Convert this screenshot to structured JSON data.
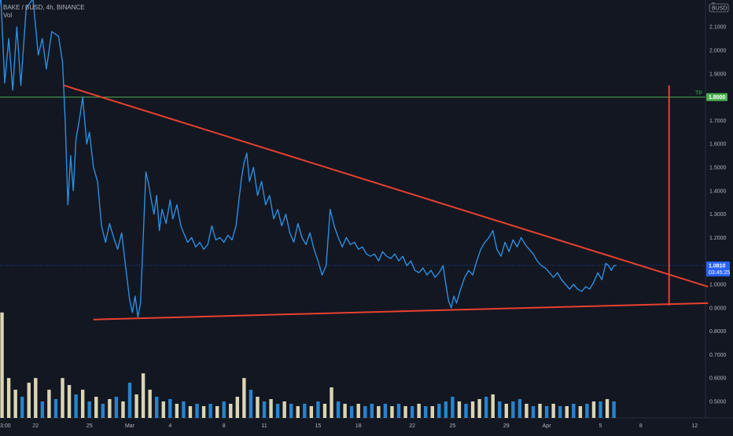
{
  "header": {
    "symbol_line": "BAKE / BUSD, 4h, BINANCE",
    "volume_label": "Vol"
  },
  "colors": {
    "background": "#131722",
    "price_line": "#2a8fe0",
    "trendline": "#e8412f",
    "target_line": "#4caf50",
    "volume_up": "#f2eac2",
    "volume_down": "#2a8fe0",
    "current_price_badge": "#2962ff",
    "target_badge": "#4caf50"
  },
  "chart_data": {
    "type": "line",
    "currency_badge": "BUSD",
    "ylim": [
      0.45,
      2.25
    ],
    "y_ticks": [
      2.1,
      2.0,
      1.9,
      1.7,
      1.6,
      1.5,
      1.4,
      1.3,
      1.2,
      1.0,
      0.9,
      0.8,
      0.7,
      0.6,
      0.5
    ],
    "y_tick_labels": [
      "2.1000",
      "2.0000",
      "1.9000",
      "1.7000",
      "1.6000",
      "1.5000",
      "1.4000",
      "1.3000",
      "1.2000",
      "1.0000",
      "0.9000",
      "0.8000",
      "0.7000",
      "0.6000",
      "0.5000"
    ],
    "top_partial_label": "2",
    "x_tick_labels": [
      "3:00",
      "22",
      "25",
      "Mar",
      "4",
      "8",
      "11",
      "15",
      "18",
      "22",
      "25",
      "29",
      "Apr",
      "5",
      "8",
      "12"
    ],
    "x_tick_days": [
      -9.75,
      -7,
      -3,
      0,
      3,
      7,
      10,
      14,
      17,
      21,
      24,
      28,
      31,
      35,
      38,
      42
    ],
    "current_price": {
      "value": 1.081,
      "label": "1.0810",
      "countdown": "03:45:25"
    },
    "target": {
      "value": 1.8,
      "label": "1.8000",
      "text": "TP"
    },
    "series": [
      {
        "points": [
          [
            -10,
            1.95
          ],
          [
            -9.6,
            2.25
          ],
          [
            -9.3,
            1.86
          ],
          [
            -9.0,
            2.05
          ],
          [
            -8.7,
            1.83
          ],
          [
            -8.4,
            2.1
          ],
          [
            -8.1,
            1.85
          ],
          [
            -7.7,
            2.18
          ],
          [
            -7.2,
            2.22
          ],
          [
            -6.8,
            1.98
          ],
          [
            -6.5,
            2.05
          ],
          [
            -6.2,
            1.92
          ],
          [
            -5.8,
            2.08
          ],
          [
            -5.3,
            2.06
          ],
          [
            -5.0,
            1.95
          ],
          [
            -4.8,
            1.7
          ],
          [
            -4.6,
            1.34
          ],
          [
            -4.4,
            1.55
          ],
          [
            -4.2,
            1.4
          ],
          [
            -4.0,
            1.62
          ],
          [
            -3.7,
            1.72
          ],
          [
            -3.5,
            1.8
          ],
          [
            -3.2,
            1.6
          ],
          [
            -3.0,
            1.65
          ],
          [
            -2.7,
            1.5
          ],
          [
            -2.4,
            1.44
          ],
          [
            -2.1,
            1.25
          ],
          [
            -1.8,
            1.18
          ],
          [
            -1.5,
            1.26
          ],
          [
            -1.2,
            1.2
          ],
          [
            -0.9,
            1.15
          ],
          [
            -0.6,
            1.22
          ],
          [
            -0.3,
            1.07
          ],
          [
            0.0,
            0.93
          ],
          [
            0.2,
            0.88
          ],
          [
            0.4,
            0.95
          ],
          [
            0.6,
            0.86
          ],
          [
            0.8,
            0.92
          ],
          [
            1.0,
            1.2
          ],
          [
            1.2,
            1.48
          ],
          [
            1.4,
            1.43
          ],
          [
            1.6,
            1.36
          ],
          [
            1.8,
            1.3
          ],
          [
            2.0,
            1.38
          ],
          [
            2.2,
            1.23
          ],
          [
            2.4,
            1.32
          ],
          [
            2.7,
            1.26
          ],
          [
            3.0,
            1.36
          ],
          [
            3.2,
            1.28
          ],
          [
            3.5,
            1.34
          ],
          [
            3.8,
            1.25
          ],
          [
            4.0,
            1.22
          ],
          [
            4.3,
            1.18
          ],
          [
            4.6,
            1.2
          ],
          [
            4.9,
            1.16
          ],
          [
            5.2,
            1.18
          ],
          [
            5.5,
            1.15
          ],
          [
            5.8,
            1.17
          ],
          [
            6.1,
            1.25
          ],
          [
            6.4,
            1.19
          ],
          [
            6.7,
            1.2
          ],
          [
            7.0,
            1.18
          ],
          [
            7.3,
            1.21
          ],
          [
            7.6,
            1.19
          ],
          [
            7.9,
            1.25
          ],
          [
            8.1,
            1.35
          ],
          [
            8.3,
            1.45
          ],
          [
            8.5,
            1.52
          ],
          [
            8.7,
            1.56
          ],
          [
            8.9,
            1.44
          ],
          [
            9.2,
            1.5
          ],
          [
            9.5,
            1.38
          ],
          [
            9.8,
            1.44
          ],
          [
            10.1,
            1.34
          ],
          [
            10.4,
            1.38
          ],
          [
            10.7,
            1.28
          ],
          [
            11.0,
            1.32
          ],
          [
            11.3,
            1.25
          ],
          [
            11.6,
            1.3
          ],
          [
            11.9,
            1.22
          ],
          [
            12.2,
            1.18
          ],
          [
            12.5,
            1.26
          ],
          [
            12.8,
            1.2
          ],
          [
            13.1,
            1.17
          ],
          [
            13.4,
            1.22
          ],
          [
            13.7,
            1.15
          ],
          [
            14.0,
            1.1
          ],
          [
            14.3,
            1.04
          ],
          [
            14.6,
            1.08
          ],
          [
            14.9,
            1.32
          ],
          [
            15.2,
            1.25
          ],
          [
            15.5,
            1.2
          ],
          [
            15.8,
            1.16
          ],
          [
            16.1,
            1.2
          ],
          [
            16.4,
            1.17
          ],
          [
            16.7,
            1.18
          ],
          [
            17.0,
            1.15
          ],
          [
            17.3,
            1.16
          ],
          [
            17.6,
            1.13
          ],
          [
            17.9,
            1.12
          ],
          [
            18.2,
            1.13
          ],
          [
            18.5,
            1.1
          ],
          [
            18.8,
            1.14
          ],
          [
            19.1,
            1.12
          ],
          [
            19.4,
            1.11
          ],
          [
            19.7,
            1.13
          ],
          [
            20.0,
            1.1
          ],
          [
            20.3,
            1.12
          ],
          [
            20.6,
            1.08
          ],
          [
            20.9,
            1.1
          ],
          [
            21.2,
            1.06
          ],
          [
            21.5,
            1.05
          ],
          [
            21.8,
            1.07
          ],
          [
            22.1,
            1.04
          ],
          [
            22.4,
            1.06
          ],
          [
            22.7,
            1.03
          ],
          [
            23.0,
            1.05
          ],
          [
            23.3,
            1.08
          ],
          [
            23.5,
            1.0
          ],
          [
            23.7,
            0.93
          ],
          [
            23.9,
            0.9
          ],
          [
            24.1,
            0.95
          ],
          [
            24.3,
            0.92
          ],
          [
            24.6,
            0.98
          ],
          [
            24.9,
            1.03
          ],
          [
            25.2,
            1.06
          ],
          [
            25.5,
            1.04
          ],
          [
            25.8,
            1.1
          ],
          [
            26.1,
            1.15
          ],
          [
            26.4,
            1.18
          ],
          [
            26.7,
            1.2
          ],
          [
            27.0,
            1.23
          ],
          [
            27.3,
            1.15
          ],
          [
            27.6,
            1.12
          ],
          [
            27.9,
            1.18
          ],
          [
            28.2,
            1.14
          ],
          [
            28.5,
            1.19
          ],
          [
            28.8,
            1.16
          ],
          [
            29.1,
            1.2
          ],
          [
            29.4,
            1.17
          ],
          [
            29.7,
            1.15
          ],
          [
            30.0,
            1.13
          ],
          [
            30.3,
            1.1
          ],
          [
            30.6,
            1.08
          ],
          [
            30.9,
            1.07
          ],
          [
            31.2,
            1.05
          ],
          [
            31.5,
            1.03
          ],
          [
            31.8,
            1.05
          ],
          [
            32.1,
            1.02
          ],
          [
            32.4,
            1.0
          ],
          [
            32.7,
            0.98
          ],
          [
            33.0,
            1.0
          ],
          [
            33.3,
            0.98
          ],
          [
            33.6,
            0.97
          ],
          [
            33.9,
            0.99
          ],
          [
            34.2,
            0.98
          ],
          [
            34.5,
            1.01
          ],
          [
            34.8,
            1.05
          ],
          [
            35.1,
            1.02
          ],
          [
            35.4,
            1.09
          ],
          [
            35.6,
            1.08
          ],
          [
            35.8,
            1.06
          ],
          [
            36.0,
            1.08
          ],
          [
            36.2,
            1.081
          ]
        ]
      }
    ],
    "annotations": {
      "upper_trendline": [
        [
          -4.9,
          1.85
        ],
        [
          43.0,
          0.99
        ]
      ],
      "lower_trendline": [
        [
          -2.7,
          0.85
        ],
        [
          43.0,
          0.92
        ]
      ],
      "target_projection": {
        "x": 40.1,
        "y_top": 1.85,
        "y_bottom": 0.91
      }
    },
    "volume": {
      "ylim_fraction": "bottom pane",
      "bars": [
        [
          -10,
          0.5,
          "down"
        ],
        [
          -9.5,
          0.88,
          "up"
        ],
        [
          -9.0,
          0.6,
          "up"
        ],
        [
          -8.5,
          0.55,
          "up"
        ],
        [
          -8.0,
          0.52,
          "down"
        ],
        [
          -7.5,
          0.58,
          "up"
        ],
        [
          -7.0,
          0.6,
          "up"
        ],
        [
          -6.5,
          0.5,
          "down"
        ],
        [
          -6.0,
          0.55,
          "up"
        ],
        [
          -5.5,
          0.51,
          "down"
        ],
        [
          -5.0,
          0.6,
          "up"
        ],
        [
          -4.5,
          0.57,
          "up"
        ],
        [
          -4.0,
          0.53,
          "down"
        ],
        [
          -3.5,
          0.55,
          "up"
        ],
        [
          -3.0,
          0.5,
          "down"
        ],
        [
          -2.5,
          0.52,
          "up"
        ],
        [
          -2.0,
          0.49,
          "down"
        ],
        [
          -1.5,
          0.51,
          "up"
        ],
        [
          -1.0,
          0.52,
          "down"
        ],
        [
          -0.5,
          0.5,
          "up"
        ],
        [
          0.0,
          0.58,
          "down"
        ],
        [
          0.5,
          0.53,
          "up"
        ],
        [
          1.0,
          0.62,
          "up"
        ],
        [
          1.5,
          0.55,
          "up"
        ],
        [
          2.0,
          0.52,
          "down"
        ],
        [
          2.5,
          0.5,
          "up"
        ],
        [
          3.0,
          0.51,
          "down"
        ],
        [
          3.5,
          0.49,
          "up"
        ],
        [
          4.0,
          0.5,
          "down"
        ],
        [
          4.5,
          0.48,
          "up"
        ],
        [
          5.0,
          0.49,
          "down"
        ],
        [
          5.5,
          0.48,
          "up"
        ],
        [
          6.0,
          0.49,
          "down"
        ],
        [
          6.5,
          0.48,
          "up"
        ],
        [
          7.0,
          0.5,
          "down"
        ],
        [
          7.5,
          0.49,
          "up"
        ],
        [
          8.0,
          0.52,
          "up"
        ],
        [
          8.5,
          0.6,
          "up"
        ],
        [
          9.0,
          0.55,
          "down"
        ],
        [
          9.5,
          0.52,
          "up"
        ],
        [
          10.0,
          0.5,
          "down"
        ],
        [
          10.5,
          0.51,
          "up"
        ],
        [
          11.0,
          0.49,
          "down"
        ],
        [
          11.5,
          0.5,
          "up"
        ],
        [
          12.0,
          0.49,
          "down"
        ],
        [
          12.5,
          0.48,
          "up"
        ],
        [
          13.0,
          0.49,
          "down"
        ],
        [
          13.5,
          0.48,
          "up"
        ],
        [
          14.0,
          0.5,
          "down"
        ],
        [
          14.5,
          0.49,
          "up"
        ],
        [
          15.0,
          0.56,
          "up"
        ],
        [
          15.5,
          0.5,
          "down"
        ],
        [
          16.0,
          0.49,
          "up"
        ],
        [
          16.5,
          0.48,
          "down"
        ],
        [
          17.0,
          0.49,
          "up"
        ],
        [
          17.5,
          0.48,
          "down"
        ],
        [
          18.0,
          0.49,
          "down"
        ],
        [
          18.5,
          0.48,
          "up"
        ],
        [
          19.0,
          0.49,
          "down"
        ],
        [
          19.5,
          0.48,
          "up"
        ],
        [
          20.0,
          0.49,
          "down"
        ],
        [
          20.5,
          0.48,
          "up"
        ],
        [
          21.0,
          0.48,
          "down"
        ],
        [
          21.5,
          0.49,
          "up"
        ],
        [
          22.0,
          0.48,
          "down"
        ],
        [
          22.5,
          0.48,
          "up"
        ],
        [
          23.0,
          0.49,
          "down"
        ],
        [
          23.5,
          0.5,
          "down"
        ],
        [
          24.0,
          0.52,
          "down"
        ],
        [
          24.5,
          0.5,
          "up"
        ],
        [
          25.0,
          0.49,
          "down"
        ],
        [
          25.5,
          0.5,
          "up"
        ],
        [
          26.0,
          0.51,
          "up"
        ],
        [
          26.5,
          0.52,
          "down"
        ],
        [
          27.0,
          0.53,
          "up"
        ],
        [
          27.5,
          0.5,
          "down"
        ],
        [
          28.0,
          0.49,
          "up"
        ],
        [
          28.5,
          0.5,
          "down"
        ],
        [
          29.0,
          0.51,
          "down"
        ],
        [
          29.5,
          0.49,
          "up"
        ],
        [
          30.0,
          0.48,
          "down"
        ],
        [
          30.5,
          0.49,
          "up"
        ],
        [
          31.0,
          0.48,
          "down"
        ],
        [
          31.5,
          0.49,
          "up"
        ],
        [
          32.0,
          0.48,
          "down"
        ],
        [
          32.5,
          0.48,
          "up"
        ],
        [
          33.0,
          0.49,
          "down"
        ],
        [
          33.5,
          0.48,
          "up"
        ],
        [
          34.0,
          0.49,
          "down"
        ],
        [
          34.5,
          0.5,
          "up"
        ],
        [
          35.0,
          0.5,
          "down"
        ],
        [
          35.5,
          0.51,
          "up"
        ],
        [
          36.0,
          0.5,
          "down"
        ]
      ]
    }
  }
}
